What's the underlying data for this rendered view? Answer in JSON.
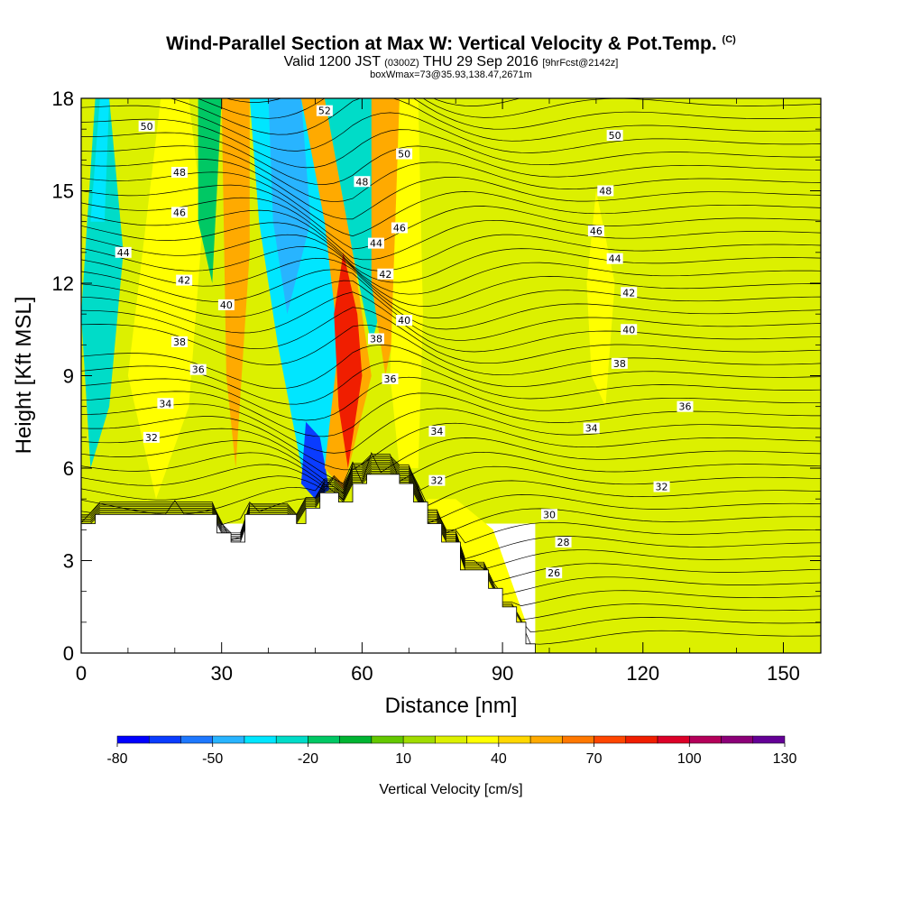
{
  "header": {
    "title": "Wind-Parallel Section at Max W: Vertical Velocity & Pot.Temp.",
    "title_mark": "(C)",
    "valid_prefix": "Valid 1200 JST",
    "valid_utc": "(0300Z)",
    "valid_date": "THU 29 Sep 2016",
    "forecast": "[9hrFcst@2142z]",
    "boxinfo": "boxWmax=73@35.93,138.47,2671m"
  },
  "chart_data": {
    "type": "heatmap",
    "xlabel": "Distance [nm]",
    "ylabel": "Height [Kft MSL]",
    "xlim": [
      0,
      158
    ],
    "ylim": [
      0,
      18
    ],
    "x_ticks": [
      "0",
      "30",
      "60",
      "90",
      "120",
      "150"
    ],
    "y_ticks": [
      "0",
      "3",
      "6",
      "9",
      "12",
      "15",
      "18"
    ],
    "colorbar": {
      "label": "Vertical Velocity [cm/s]",
      "tick_labels": [
        "-80",
        "-50",
        "-20",
        "10",
        "40",
        "70",
        "100",
        "130"
      ],
      "colors": [
        "#0000ff",
        "#0a3cff",
        "#1e78ff",
        "#28b4ff",
        "#00e6ff",
        "#00dcc8",
        "#00c864",
        "#00b432",
        "#64c800",
        "#a0dc00",
        "#dcf000",
        "#ffff00",
        "#ffd700",
        "#ffaa00",
        "#ff7800",
        "#ff4600",
        "#f01e00",
        "#dc0028",
        "#b4005a",
        "#8c0078",
        "#640096"
      ]
    },
    "terrain": [
      [
        0,
        4.2
      ],
      [
        3,
        4.2
      ],
      [
        3,
        4.5
      ],
      [
        29,
        4.5
      ],
      [
        29,
        3.9
      ],
      [
        32,
        3.9
      ],
      [
        32,
        3.6
      ],
      [
        35,
        3.6
      ],
      [
        35,
        4.5
      ],
      [
        46,
        4.5
      ],
      [
        46,
        4.2
      ],
      [
        48,
        4.2
      ],
      [
        48,
        4.7
      ],
      [
        51,
        4.7
      ],
      [
        51,
        5.2
      ],
      [
        55,
        5.2
      ],
      [
        55,
        4.9
      ],
      [
        58,
        4.9
      ],
      [
        58,
        5.5
      ],
      [
        61,
        5.5
      ],
      [
        61,
        5.8
      ],
      [
        68,
        5.8
      ],
      [
        68,
        5.5
      ],
      [
        71,
        5.5
      ],
      [
        71,
        4.9
      ],
      [
        74,
        4.9
      ],
      [
        74,
        4.2
      ],
      [
        77,
        4.2
      ],
      [
        77,
        3.6
      ],
      [
        81,
        3.6
      ],
      [
        81,
        2.7
      ],
      [
        87,
        2.7
      ],
      [
        87,
        2.1
      ],
      [
        90,
        2.1
      ],
      [
        90,
        1.5
      ],
      [
        93,
        1.5
      ],
      [
        93,
        1.0
      ],
      [
        95,
        1.0
      ],
      [
        95,
        0.3
      ],
      [
        97,
        0.3
      ],
      [
        97,
        0
      ]
    ],
    "w_regions": [
      {
        "value": 10,
        "poly": [
          [
            0,
            4.2
          ],
          [
            0,
            18
          ],
          [
            158,
            18
          ],
          [
            158,
            0
          ],
          [
            97,
            0
          ],
          [
            97,
            4.2
          ]
        ]
      },
      {
        "value": -35,
        "poly": [
          [
            0,
            11
          ],
          [
            3,
            18
          ],
          [
            6,
            18
          ],
          [
            9,
            13
          ],
          [
            6,
            8
          ],
          [
            2,
            6
          ]
        ]
      },
      {
        "value": -50,
        "poly": [
          [
            2,
            14
          ],
          [
            4,
            18
          ],
          [
            6,
            18
          ],
          [
            5,
            14
          ]
        ]
      },
      {
        "value": 25,
        "poly": [
          [
            10,
            9
          ],
          [
            17,
            18
          ],
          [
            23,
            18
          ],
          [
            26,
            14
          ],
          [
            23,
            8
          ],
          [
            16,
            5
          ]
        ]
      },
      {
        "value": -30,
        "poly": [
          [
            25,
            18
          ],
          [
            30,
            18
          ],
          [
            28,
            12
          ],
          [
            25,
            14
          ]
        ]
      },
      {
        "value": 45,
        "poly": [
          [
            30,
            18
          ],
          [
            36,
            18
          ],
          [
            36,
            13
          ],
          [
            33,
            6
          ],
          [
            31,
            9
          ]
        ]
      },
      {
        "value": -45,
        "poly": [
          [
            36,
            18
          ],
          [
            49,
            18
          ],
          [
            56,
            12
          ],
          [
            55,
            8
          ],
          [
            52,
            6
          ],
          [
            48,
            5.3
          ],
          [
            42,
            10
          ],
          [
            38,
            14
          ]
        ]
      },
      {
        "value": -60,
        "poly": [
          [
            40,
            18
          ],
          [
            47,
            18
          ],
          [
            49,
            14
          ],
          [
            44,
            11
          ],
          [
            41,
            14
          ]
        ]
      },
      {
        "value": -75,
        "poly": [
          [
            48,
            7.5
          ],
          [
            51,
            7
          ],
          [
            53,
            5.3
          ],
          [
            50,
            5
          ],
          [
            47,
            5.5
          ]
        ]
      },
      {
        "value": 45,
        "poly": [
          [
            47,
            18
          ],
          [
            52,
            18
          ],
          [
            58,
            13
          ],
          [
            62,
            9
          ],
          [
            56,
            5.3
          ],
          [
            52,
            6
          ],
          [
            55,
            10
          ],
          [
            52,
            14
          ]
        ]
      },
      {
        "value": 70,
        "poly": [
          [
            56,
            13
          ],
          [
            59,
            11
          ],
          [
            60,
            9
          ],
          [
            57,
            6
          ],
          [
            55,
            8
          ],
          [
            54,
            11
          ]
        ]
      },
      {
        "value": -40,
        "poly": [
          [
            52,
            18
          ],
          [
            62,
            18
          ],
          [
            67,
            13
          ],
          [
            62,
            10
          ],
          [
            58,
            13
          ]
        ]
      },
      {
        "value": 45,
        "poly": [
          [
            62,
            18
          ],
          [
            69,
            18
          ],
          [
            69,
            12
          ],
          [
            65,
            9
          ],
          [
            62,
            12
          ]
        ]
      },
      {
        "value": 25,
        "poly": [
          [
            68,
            18
          ],
          [
            72,
            18
          ],
          [
            73,
            11
          ],
          [
            72,
            6
          ],
          [
            68,
            6
          ],
          [
            66,
            9
          ]
        ]
      },
      {
        "value": 25,
        "poly": [
          [
            76,
            3
          ],
          [
            84,
            2
          ],
          [
            90,
            1
          ],
          [
            95,
            1
          ],
          [
            88,
            4
          ],
          [
            80,
            5
          ],
          [
            74,
            5
          ]
        ]
      },
      {
        "value": 15,
        "poly": [
          [
            96,
            18
          ],
          [
            106,
            18
          ],
          [
            108,
            15
          ],
          [
            106,
            11
          ],
          [
            100,
            12
          ],
          [
            97,
            15
          ]
        ]
      },
      {
        "value": 20,
        "poly": [
          [
            110,
            15
          ],
          [
            114,
            12
          ],
          [
            112,
            8
          ],
          [
            109,
            9
          ],
          [
            108,
            12
          ]
        ]
      },
      {
        "value": 15,
        "poly": [
          [
            125,
            12
          ],
          [
            130,
            9
          ],
          [
            128,
            7
          ],
          [
            124,
            9
          ]
        ]
      },
      {
        "value": 15,
        "poly": [
          [
            138,
            14
          ],
          [
            142,
            10
          ],
          [
            140,
            7
          ],
          [
            137,
            9
          ]
        ]
      },
      {
        "value": 15,
        "poly": [
          [
            98,
            3
          ],
          [
            110,
            2
          ],
          [
            130,
            3
          ],
          [
            150,
            4
          ],
          [
            158,
            3
          ],
          [
            158,
            0.4
          ],
          [
            120,
            1.5
          ],
          [
            105,
            2
          ]
        ]
      }
    ],
    "contour_labels": [
      {
        "x": 14,
        "y": 17.1,
        "text": "50"
      },
      {
        "x": 52,
        "y": 17.6,
        "text": "52"
      },
      {
        "x": 114,
        "y": 16.8,
        "text": "50"
      },
      {
        "x": 21,
        "y": 15.6,
        "text": "48"
      },
      {
        "x": 69,
        "y": 16.2,
        "text": "50"
      },
      {
        "x": 60,
        "y": 15.3,
        "text": "48"
      },
      {
        "x": 112,
        "y": 15.0,
        "text": "48"
      },
      {
        "x": 21,
        "y": 14.3,
        "text": "46"
      },
      {
        "x": 68,
        "y": 13.8,
        "text": "46"
      },
      {
        "x": 110,
        "y": 13.7,
        "text": "46"
      },
      {
        "x": 9,
        "y": 13.0,
        "text": "44"
      },
      {
        "x": 63,
        "y": 13.3,
        "text": "44"
      },
      {
        "x": 114,
        "y": 12.8,
        "text": "44"
      },
      {
        "x": 22,
        "y": 12.1,
        "text": "42"
      },
      {
        "x": 65,
        "y": 12.3,
        "text": "42"
      },
      {
        "x": 117,
        "y": 11.7,
        "text": "42"
      },
      {
        "x": 31,
        "y": 11.3,
        "text": "40"
      },
      {
        "x": 69,
        "y": 10.8,
        "text": "40"
      },
      {
        "x": 117,
        "y": 10.5,
        "text": "40"
      },
      {
        "x": 21,
        "y": 10.1,
        "text": "38"
      },
      {
        "x": 63,
        "y": 10.2,
        "text": "38"
      },
      {
        "x": 115,
        "y": 9.4,
        "text": "38"
      },
      {
        "x": 25,
        "y": 9.2,
        "text": "36"
      },
      {
        "x": 66,
        "y": 8.9,
        "text": "36"
      },
      {
        "x": 129,
        "y": 8.0,
        "text": "36"
      },
      {
        "x": 18,
        "y": 8.1,
        "text": "34"
      },
      {
        "x": 76,
        "y": 7.2,
        "text": "34"
      },
      {
        "x": 109,
        "y": 7.3,
        "text": "34"
      },
      {
        "x": 15,
        "y": 7.0,
        "text": "32"
      },
      {
        "x": 76,
        "y": 5.6,
        "text": "32"
      },
      {
        "x": 124,
        "y": 5.4,
        "text": "32"
      },
      {
        "x": 100,
        "y": 4.5,
        "text": "30"
      },
      {
        "x": 103,
        "y": 3.6,
        "text": "28"
      },
      {
        "x": 101,
        "y": 2.6,
        "text": "26"
      }
    ]
  }
}
